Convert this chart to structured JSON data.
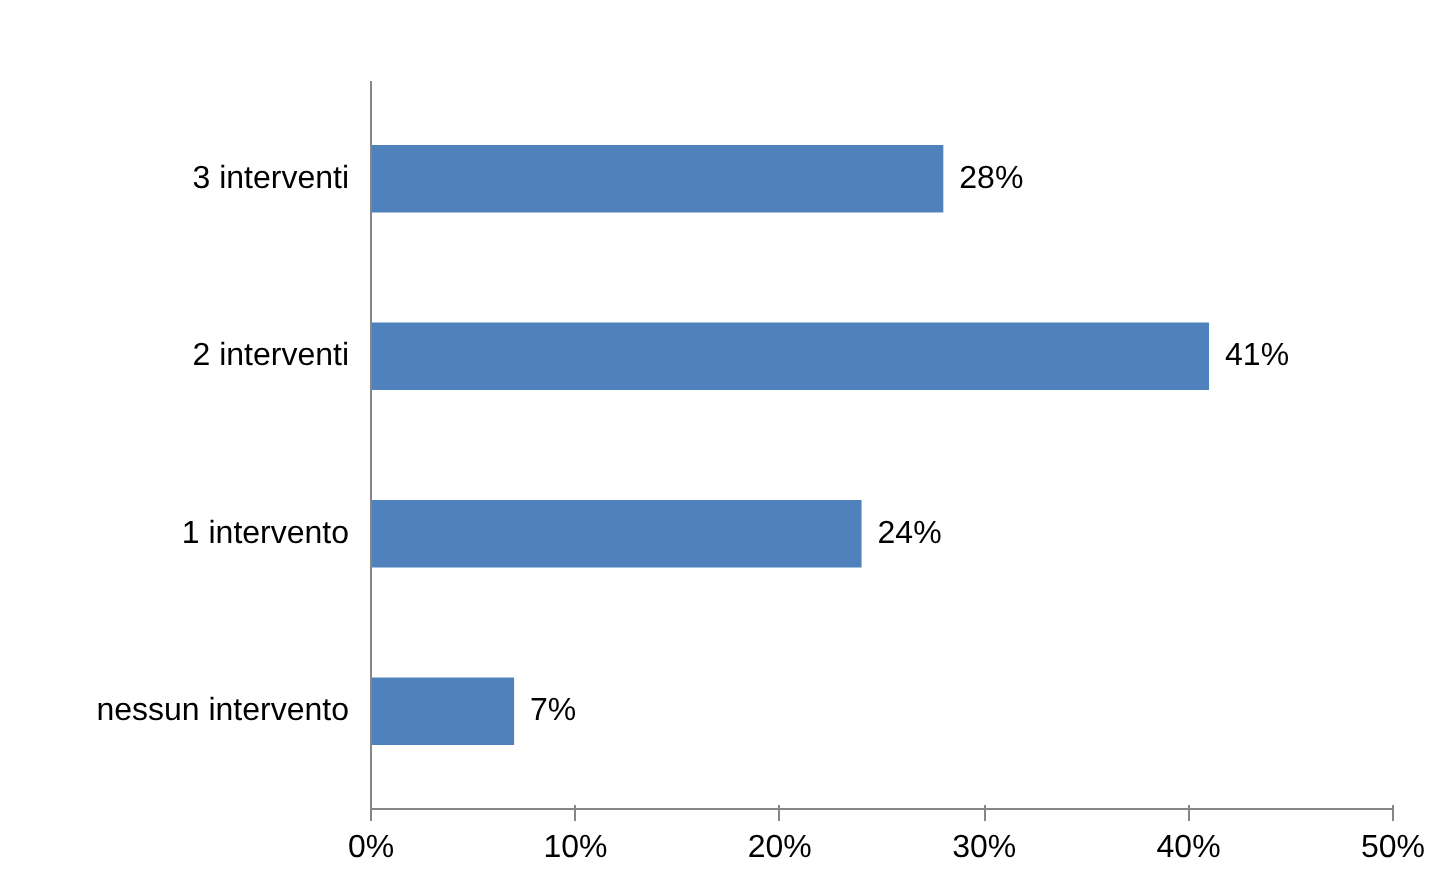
{
  "chart_data": {
    "type": "bar",
    "orientation": "horizontal",
    "categories": [
      "3 interventi",
      "2 interventi",
      "1 intervento",
      "nessun intervento"
    ],
    "values": [
      28,
      41,
      24,
      7
    ],
    "value_labels": [
      "28%",
      "41%",
      "24%",
      "7%"
    ],
    "color": "#4f81bd",
    "xlim": [
      0,
      50
    ],
    "xticks": [
      {
        "value": 0,
        "label": "0%"
      },
      {
        "value": 10,
        "label": "10%"
      },
      {
        "value": 20,
        "label": "20%"
      },
      {
        "value": 30,
        "label": "30%"
      },
      {
        "value": 40,
        "label": "40%"
      },
      {
        "value": 50,
        "label": "50%"
      }
    ],
    "grid": false
  }
}
